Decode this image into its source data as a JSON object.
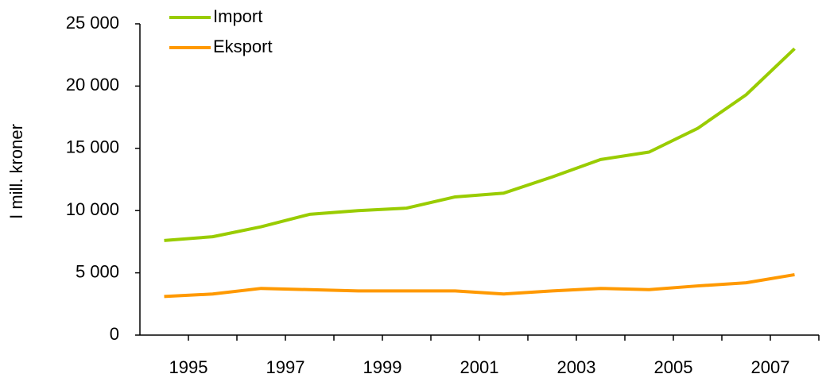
{
  "chart_data": {
    "type": "line",
    "y_label": "I mill. kroner",
    "categories": [
      "1995",
      null,
      "1997",
      null,
      "1999",
      null,
      "2001",
      null,
      "2003",
      null,
      "2005",
      null,
      "2007",
      null
    ],
    "series": [
      {
        "name": "Import",
        "color": "#99cc00",
        "values": [
          7600,
          7900,
          8700,
          9700,
          10000,
          10200,
          11100,
          11400,
          12700,
          14100,
          14700,
          16600,
          19300,
          23000
        ]
      },
      {
        "name": "Eksport",
        "color": "#ff9900",
        "values": [
          3100,
          3300,
          3750,
          3650,
          3550,
          3550,
          3550,
          3300,
          3550,
          3750,
          3650,
          3950,
          4200,
          4850
        ]
      }
    ],
    "ylim": [
      0,
      25000
    ],
    "yticks": [
      0,
      {
        "value": 5000,
        "label": "5 000"
      },
      {
        "value": 10000,
        "label": "10 000"
      },
      {
        "value": 15000,
        "label": "15 000"
      },
      {
        "value": 20000,
        "label": "20 000"
      },
      {
        "value": 25000,
        "label": "25 000"
      }
    ],
    "legend": "top-left"
  }
}
